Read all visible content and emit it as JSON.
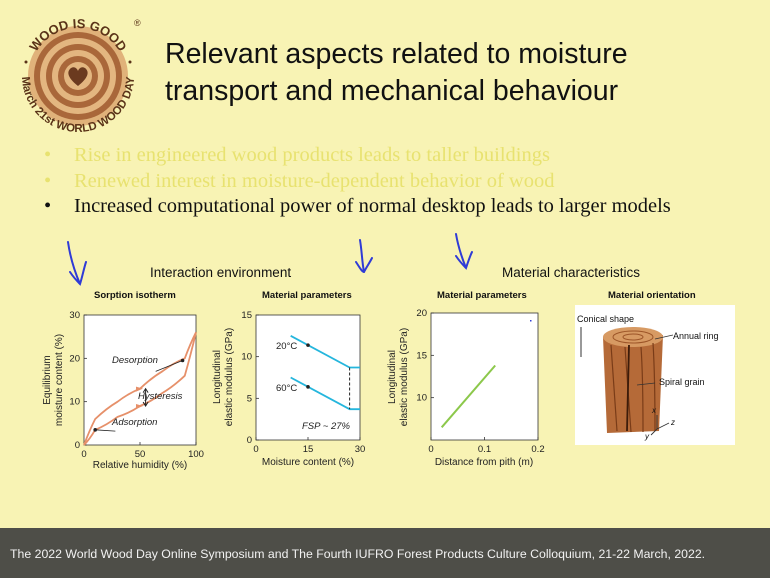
{
  "logo": {
    "top_text": "WOOD IS GOOD",
    "bottom_text": "March 21st WORLD WOOD DAY",
    "registered": "®"
  },
  "title": {
    "line1": "Relevant aspects related to moisture",
    "line2": "transport and mechanical behaviour"
  },
  "bullets": [
    {
      "text": "Rise in engineered wood products leads to taller buildings"
    },
    {
      "text": "Renewed interest in moisture-dependent behavior of wood"
    },
    {
      "text": "Increased computational power of normal desktop leads to larger models"
    }
  ],
  "bullet_symbol": "•",
  "sections": {
    "left": "Interaction environment",
    "right": "Material characteristics"
  },
  "panel_headers": {
    "sorption": "Sorption isotherm",
    "params1": "Material parameters",
    "params2": "Material parameters",
    "orientation": "Material orientation"
  },
  "sorption_chart": {
    "ylabel_line1": "Equilibrium",
    "ylabel_line2": "moisture content (%)",
    "xlabel": "Relative humidity (%)",
    "yticks": [
      "0",
      "10",
      "20",
      "30"
    ],
    "xticks": [
      "0",
      "50",
      "100"
    ],
    "desorption_label": "Desorption",
    "hysteresis_label": "Hysteresis",
    "adsorption_label": "Adsorption"
  },
  "modulus_chart": {
    "ylabel_line1": "Longitudinal",
    "ylabel_line2": "elastic modulus (GPa)",
    "xlabel": "Moisture content (%)",
    "yticks": [
      "0",
      "5",
      "10",
      "15"
    ],
    "xticks": [
      "0",
      "15",
      "30"
    ],
    "t1": "20°C",
    "t2": "60°C",
    "fsp": "FSP ~ 27%"
  },
  "pith_chart": {
    "ylabel_line1": "Longitudinal",
    "ylabel_line2": "elastic modulus (GPa)",
    "xlabel": "Distance from pith (m)",
    "yticks": [
      "10",
      "15",
      "20"
    ],
    "xticks": [
      "0",
      "0.1",
      "0.2"
    ]
  },
  "orientation_fig": {
    "conical": "Conical shape",
    "annual": "Annual ring",
    "spiral": "Spiral grain",
    "ax_x": "x",
    "ax_y": "y",
    "ax_z": "z"
  },
  "chart_data": [
    {
      "type": "line",
      "title": "Sorption isotherm",
      "xlabel": "Relative humidity (%)",
      "ylabel": "Equilibrium moisture content (%)",
      "xlim": [
        0,
        100
      ],
      "ylim": [
        0,
        30
      ],
      "series": [
        {
          "name": "Desorption",
          "x": [
            0,
            10,
            30,
            50,
            70,
            90,
            100
          ],
          "y": [
            0,
            6,
            10,
            13,
            17,
            20,
            26
          ]
        },
        {
          "name": "Adsorption",
          "x": [
            0,
            10,
            30,
            50,
            70,
            90,
            100
          ],
          "y": [
            0,
            3.5,
            6.5,
            9,
            12,
            16,
            26
          ]
        }
      ]
    },
    {
      "type": "line",
      "title": "Material parameters",
      "xlabel": "Moisture content (%)",
      "ylabel": "Longitudinal elastic modulus (GPa)",
      "xlim": [
        0,
        30
      ],
      "ylim": [
        0,
        15
      ],
      "series": [
        {
          "name": "20°C",
          "x": [
            10,
            27,
            30
          ],
          "y": [
            12.5,
            8.7,
            8.7
          ]
        },
        {
          "name": "60°C",
          "x": [
            10,
            27,
            30
          ],
          "y": [
            7.5,
            3.7,
            3.7
          ]
        }
      ]
    },
    {
      "type": "line",
      "title": "Material parameters",
      "xlabel": "Distance from pith (m)",
      "ylabel": "Longitudinal elastic modulus (GPa)",
      "xlim": [
        0,
        0.2
      ],
      "ylim": [
        5,
        20
      ],
      "series": [
        {
          "x": [
            0.02,
            0.12
          ],
          "y": [
            6.5,
            13.8
          ]
        }
      ]
    }
  ],
  "colors": {
    "background": "#f8f3b4",
    "faded_text": "#e8e270",
    "footer_bg": "#4e4e48",
    "curve_orange": "#e6906a",
    "line_cyan": "#25b6dd",
    "line_green": "#8cc84b",
    "pen_blue": "#2f3bd6"
  },
  "footer": {
    "text": "The 2022 World Wood Day Online Symposium and The Fourth IUFRO Forest Products Culture Colloquium, 21-22 March, 2022."
  }
}
